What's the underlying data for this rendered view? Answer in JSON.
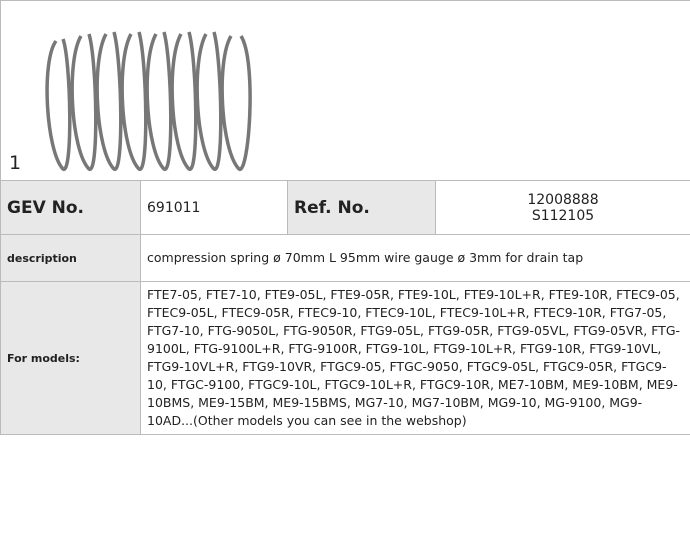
{
  "image": {
    "caption": "1"
  },
  "table": {
    "rows": [
      [
        "GEV No.",
        "691011",
        "Ref. No.",
        "12008888\nS112105"
      ],
      [
        "description",
        "compression spring  ø 70mm L 95mm wire gauge ø 3mm for drain tap"
      ],
      [
        "For models:",
        "FTE7-05, FTE7-10, FTE9-05L, FTE9-05R, FTE9-10L, FTE9-10L+R, FTE9-10R, FTEC9-05, FTEC9-05L, FTEC9-05R, FTEC9-10, FTEC9-10L, FTEC9-10L+R, FTEC9-10R, FTG7-05, FTG7-10, FTG-9050L, FTG-9050R, FTG9-05L, FTG9-05R, FTG9-05VL, FTG9-05VR, FTG-9100L, FTG-9100L+R, FTG-9100R, FTG9-10L, FTG9-10L+R, FTG9-10R, FTG9-10VL, FTG9-10VL+R, FTG9-10VR, FTGC9-05, FTGC-9050, FTGC9-05L, FTGC9-05R, FTGC9-10, FTGC-9100, FTGC9-10L, FTGC9-10L+R, FTGC9-10R, ME7-10BM, ME9-10BM, ME9-10BMS, ME9-15BM, ME9-15BMS, MG7-10, MG7-10BM, MG9-10, MG-9100, MG9-10AD...(Other models you can see in the webshop)"
      ]
    ]
  }
}
